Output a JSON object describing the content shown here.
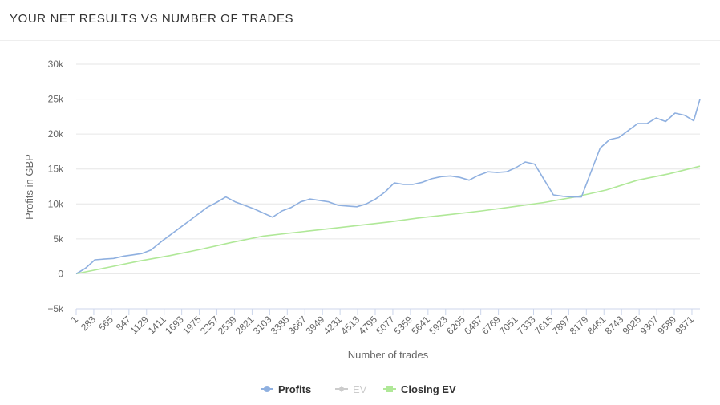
{
  "header": {
    "title": "YOUR NET RESULTS VS NUMBER OF TRADES"
  },
  "chart_data": {
    "type": "line",
    "xlabel": "Number of trades",
    "ylabel": "Profits in GBP",
    "xlim": [
      1,
      10000
    ],
    "ylim": [
      -5000,
      30000
    ],
    "x_ticks": [
      1,
      283,
      565,
      847,
      1129,
      1411,
      1693,
      1975,
      2257,
      2539,
      2821,
      3103,
      3385,
      3667,
      3949,
      4231,
      4513,
      4795,
      5077,
      5359,
      5641,
      5923,
      6205,
      6487,
      6769,
      7051,
      7333,
      7615,
      7897,
      8179,
      8461,
      8743,
      9025,
      9307,
      9589,
      9871
    ],
    "y_ticks": [
      -5000,
      0,
      5000,
      10000,
      15000,
      20000,
      25000,
      30000
    ],
    "y_tick_labels": [
      "−5k",
      "0",
      "5k",
      "10k",
      "15k",
      "20k",
      "25k",
      "30k"
    ],
    "grid": true,
    "legend_position": "bottom-center",
    "series": [
      {
        "name": "Profits",
        "color": "#8fb0e0",
        "marker": "circle",
        "visible": true,
        "x": [
          1,
          150,
          300,
          450,
          600,
          750,
          900,
          1050,
          1200,
          1350,
          1500,
          1650,
          1800,
          1950,
          2100,
          2250,
          2400,
          2550,
          2700,
          2850,
          3000,
          3150,
          3300,
          3450,
          3600,
          3750,
          3900,
          4050,
          4200,
          4350,
          4500,
          4650,
          4800,
          4950,
          5100,
          5250,
          5400,
          5550,
          5700,
          5850,
          6000,
          6150,
          6300,
          6450,
          6600,
          6750,
          6900,
          7050,
          7200,
          7350,
          7500,
          7650,
          7800,
          7950,
          8100,
          8250,
          8400,
          8550,
          8700,
          8850,
          9000,
          9150,
          9300,
          9450,
          9600,
          9750,
          9900,
          10000
        ],
        "values": [
          0,
          800,
          2000,
          2100,
          2200,
          2500,
          2700,
          2900,
          3400,
          4500,
          5500,
          6500,
          7500,
          8500,
          9500,
          10200,
          11000,
          10300,
          9800,
          9300,
          8700,
          8100,
          9000,
          9500,
          10300,
          10700,
          10500,
          10300,
          9800,
          9700,
          9600,
          10000,
          10700,
          11700,
          13000,
          12800,
          12800,
          13100,
          13600,
          13900,
          14000,
          13800,
          13400,
          14100,
          14600,
          14500,
          14600,
          15200,
          16000,
          15700,
          13500,
          11300,
          11100,
          11000,
          11000,
          14500,
          18000,
          19200,
          19500,
          20500,
          21500,
          21500,
          22300,
          21800,
          23000,
          22700,
          21900,
          25000
        ]
      },
      {
        "name": "EV",
        "color": "#bbbbbb",
        "marker": "diamond",
        "visible": false,
        "x": [],
        "values": []
      },
      {
        "name": "Closing EV",
        "color": "#b0e898",
        "marker": "square",
        "visible": true,
        "x": [
          1,
          500,
          1000,
          1500,
          2000,
          2500,
          3000,
          3500,
          4000,
          4500,
          5000,
          5500,
          6000,
          6500,
          7000,
          7500,
          8000,
          8500,
          9000,
          9500,
          10000
        ],
        "values": [
          0,
          900,
          1800,
          2600,
          3500,
          4500,
          5400,
          5900,
          6400,
          6900,
          7400,
          8000,
          8500,
          9000,
          9600,
          10200,
          11000,
          12000,
          13400,
          14300,
          15400
        ]
      }
    ]
  }
}
